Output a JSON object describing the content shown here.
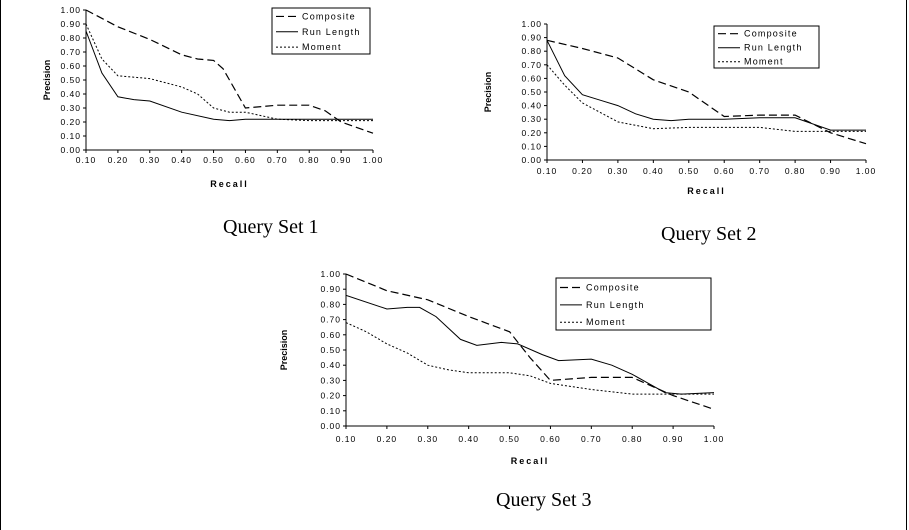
{
  "chart_data": [
    {
      "type": "line",
      "title": "",
      "caption": "Query Set 1",
      "xlabel": "Recall",
      "ylabel": "Precision",
      "xlim": [
        0.1,
        1.0
      ],
      "ylim": [
        0.0,
        1.0
      ],
      "x_ticks": [
        "0.10",
        "0.20",
        "0.30",
        "0.40",
        "0.50",
        "0.60",
        "0.70",
        "0.80",
        "0.90",
        "1.00"
      ],
      "y_ticks": [
        "0.00",
        "0.10",
        "0.20",
        "0.30",
        "0.40",
        "0.50",
        "0.60",
        "0.70",
        "0.80",
        "0.90",
        "1.00"
      ],
      "grid": false,
      "legend": "top-right",
      "series": [
        {
          "name": "Composite",
          "style": "dashed",
          "x": [
            0.1,
            0.2,
            0.3,
            0.4,
            0.45,
            0.5,
            0.53,
            0.6,
            0.7,
            0.8,
            0.85,
            0.9,
            1.0
          ],
          "y": [
            1.0,
            0.88,
            0.79,
            0.68,
            0.65,
            0.64,
            0.58,
            0.3,
            0.32,
            0.32,
            0.28,
            0.2,
            0.12
          ]
        },
        {
          "name": "Run Length",
          "style": "solid",
          "x": [
            0.1,
            0.15,
            0.2,
            0.25,
            0.3,
            0.4,
            0.5,
            0.55,
            0.6,
            0.7,
            0.8,
            0.9,
            1.0
          ],
          "y": [
            0.85,
            0.55,
            0.38,
            0.36,
            0.35,
            0.27,
            0.22,
            0.21,
            0.22,
            0.22,
            0.22,
            0.22,
            0.22
          ]
        },
        {
          "name": "Moment",
          "style": "dotted",
          "x": [
            0.1,
            0.15,
            0.2,
            0.3,
            0.4,
            0.45,
            0.5,
            0.55,
            0.6,
            0.7,
            0.8,
            0.9,
            1.0
          ],
          "y": [
            0.9,
            0.65,
            0.53,
            0.51,
            0.45,
            0.4,
            0.3,
            0.27,
            0.27,
            0.22,
            0.21,
            0.21,
            0.21
          ]
        }
      ]
    },
    {
      "type": "line",
      "title": "",
      "caption": "Query Set 2",
      "xlabel": "Recall",
      "ylabel": "Precision",
      "xlim": [
        0.1,
        1.0
      ],
      "ylim": [
        0.0,
        1.0
      ],
      "x_ticks": [
        "0.10",
        "0.20",
        "0.30",
        "0.40",
        "0.50",
        "0.60",
        "0.70",
        "0.80",
        "0.90",
        "1.00"
      ],
      "y_ticks": [
        "0.00",
        "0.10",
        "0.20",
        "0.30",
        "0.40",
        "0.50",
        "0.60",
        "0.70",
        "0.80",
        "0.90",
        "1.00"
      ],
      "grid": false,
      "legend": "top-right",
      "series": [
        {
          "name": "Composite",
          "style": "dashed",
          "x": [
            0.1,
            0.2,
            0.3,
            0.4,
            0.5,
            0.6,
            0.7,
            0.8,
            0.9,
            1.0
          ],
          "y": [
            0.88,
            0.82,
            0.75,
            0.59,
            0.5,
            0.32,
            0.33,
            0.33,
            0.2,
            0.12
          ]
        },
        {
          "name": "Run Length",
          "style": "solid",
          "x": [
            0.1,
            0.15,
            0.2,
            0.25,
            0.3,
            0.35,
            0.4,
            0.45,
            0.5,
            0.6,
            0.7,
            0.8,
            0.9,
            1.0
          ],
          "y": [
            0.88,
            0.62,
            0.48,
            0.44,
            0.4,
            0.34,
            0.3,
            0.29,
            0.3,
            0.3,
            0.31,
            0.31,
            0.22,
            0.22
          ]
        },
        {
          "name": "Moment",
          "style": "dotted",
          "x": [
            0.1,
            0.15,
            0.2,
            0.3,
            0.4,
            0.5,
            0.6,
            0.7,
            0.8,
            0.9,
            1.0
          ],
          "y": [
            0.7,
            0.55,
            0.42,
            0.28,
            0.23,
            0.24,
            0.24,
            0.24,
            0.21,
            0.21,
            0.21
          ]
        }
      ]
    },
    {
      "type": "line",
      "title": "",
      "caption": "Query Set 3",
      "xlabel": "Recall",
      "ylabel": "Precision",
      "xlim": [
        0.1,
        1.0
      ],
      "ylim": [
        0.0,
        1.0
      ],
      "x_ticks": [
        "0.10",
        "0.20",
        "0.30",
        "0.40",
        "0.50",
        "0.60",
        "0.70",
        "0.80",
        "0.90",
        "1.00"
      ],
      "y_ticks": [
        "0.00",
        "0.10",
        "0.20",
        "0.30",
        "0.40",
        "0.50",
        "0.60",
        "0.70",
        "0.80",
        "0.90",
        "1.00"
      ],
      "grid": false,
      "legend": "top-right",
      "series": [
        {
          "name": "Composite",
          "style": "dashed",
          "x": [
            0.1,
            0.2,
            0.3,
            0.4,
            0.5,
            0.55,
            0.6,
            0.7,
            0.8,
            0.9,
            1.0
          ],
          "y": [
            1.0,
            0.89,
            0.83,
            0.72,
            0.62,
            0.45,
            0.3,
            0.32,
            0.32,
            0.2,
            0.11
          ]
        },
        {
          "name": "Run Length",
          "style": "solid",
          "x": [
            0.1,
            0.2,
            0.25,
            0.28,
            0.32,
            0.38,
            0.42,
            0.48,
            0.52,
            0.58,
            0.62,
            0.7,
            0.75,
            0.8,
            0.88,
            0.92,
            1.0
          ],
          "y": [
            0.86,
            0.77,
            0.78,
            0.78,
            0.72,
            0.57,
            0.53,
            0.55,
            0.54,
            0.47,
            0.43,
            0.44,
            0.4,
            0.34,
            0.22,
            0.21,
            0.22
          ]
        },
        {
          "name": "Moment",
          "style": "dotted",
          "x": [
            0.1,
            0.15,
            0.2,
            0.25,
            0.3,
            0.35,
            0.4,
            0.5,
            0.55,
            0.6,
            0.7,
            0.8,
            0.9,
            1.0
          ],
          "y": [
            0.68,
            0.62,
            0.54,
            0.48,
            0.4,
            0.37,
            0.35,
            0.35,
            0.33,
            0.28,
            0.24,
            0.21,
            0.21,
            0.21
          ]
        }
      ]
    }
  ]
}
